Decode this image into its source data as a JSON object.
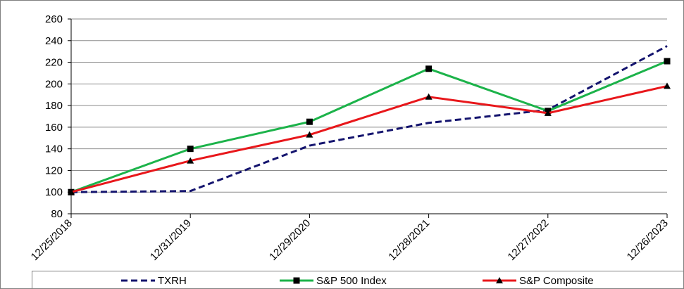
{
  "chart_data": {
    "type": "line",
    "title": "",
    "xlabel": "",
    "ylabel": "",
    "categories": [
      "12/25/2018",
      "12/31/2019",
      "12/29/2020",
      "12/28/2021",
      "12/27/2022",
      "12/26/2023"
    ],
    "ylim": [
      80,
      260
    ],
    "yticks": [
      80,
      100,
      120,
      140,
      160,
      180,
      200,
      220,
      240,
      260
    ],
    "grid": "horizontal",
    "legend_position": "bottom",
    "series": [
      {
        "name": "TXRH",
        "values": [
          100,
          101,
          143,
          164,
          176,
          235
        ],
        "color": "#14146e",
        "style": "dashed",
        "marker": "none"
      },
      {
        "name": "S&P 500 Index",
        "values": [
          100,
          140,
          165,
          214,
          175,
          221
        ],
        "color": "#1cb34a",
        "style": "solid",
        "marker": "square"
      },
      {
        "name": "S&P Composite",
        "values": [
          100,
          129,
          153,
          188,
          173,
          198
        ],
        "color": "#e8171b",
        "style": "solid",
        "marker": "triangle"
      }
    ]
  }
}
